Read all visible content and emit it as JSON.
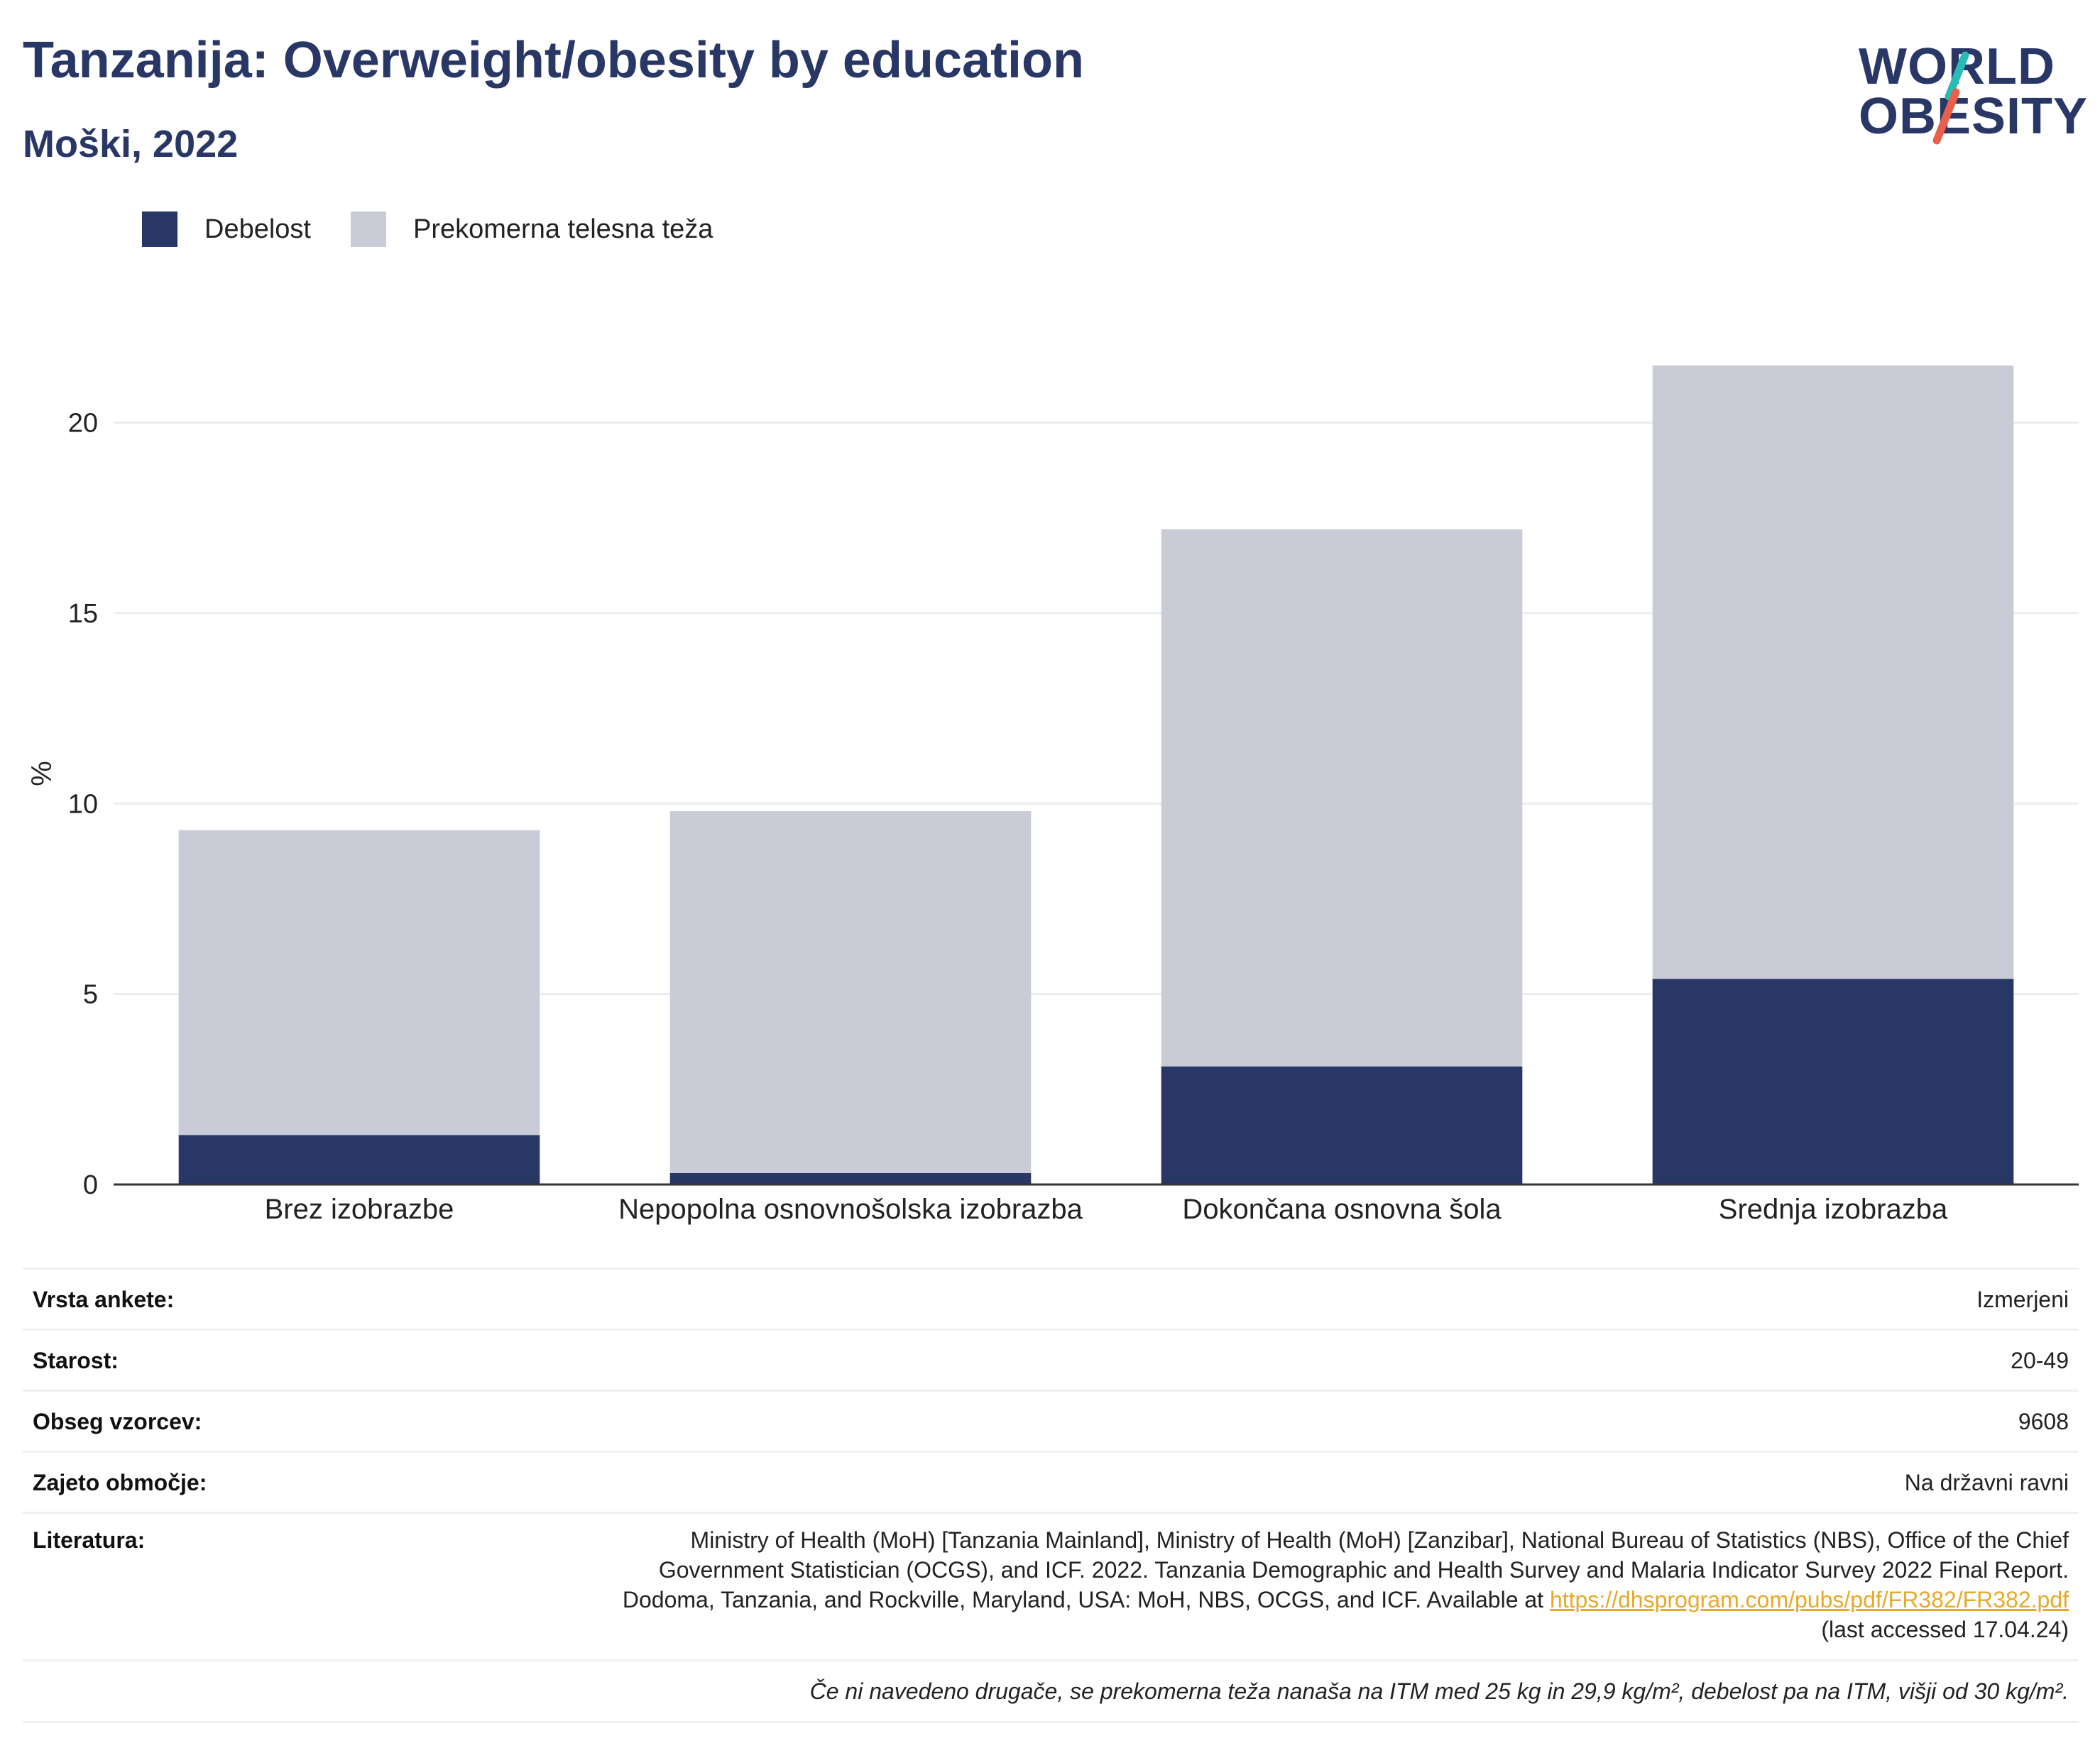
{
  "title": "Tanzanija: Overweight/obesity by education",
  "subtitle": "Moški, 2022",
  "logo": {
    "line1": "WORLD",
    "line2": "OBESITY",
    "accent_top": "#2bbbb7",
    "accent_bottom": "#e8604c"
  },
  "colors": {
    "obesity": "#283765",
    "overweight": "#c9ccd7",
    "title": "#283765",
    "link": "#e7a92a"
  },
  "legend": [
    {
      "label": "Debelost",
      "color": "#283765"
    },
    {
      "label": "Prekomerna telesna teža",
      "color": "#c9ccd7"
    }
  ],
  "chart_data": {
    "type": "bar",
    "stacked": true,
    "categories": [
      "Brez izobrazbe",
      "Nepopolna osnovnošolska izobrazba",
      "Dokončana osnovna šola",
      "Srednja izobrazba"
    ],
    "series": [
      {
        "name": "Debelost",
        "values": [
          1.3,
          0.3,
          3.1,
          5.4
        ]
      },
      {
        "name": "Prekomerna telesna teža",
        "values": [
          8.0,
          9.5,
          14.1,
          16.1
        ]
      }
    ],
    "ylabel": "%",
    "yticks": [
      0,
      5,
      10,
      15,
      20
    ],
    "ylim": [
      0,
      23
    ],
    "grid": true,
    "legend_position": "top-left"
  },
  "info": {
    "survey_type": {
      "label": "Vrsta ankete:",
      "value": "Izmerjeni"
    },
    "age": {
      "label": "Starost:",
      "value": "20-49"
    },
    "sample": {
      "label": "Obseg vzorcev:",
      "value": "9608"
    },
    "coverage": {
      "label": "Zajeto območje:",
      "value": "Na državni ravni"
    },
    "reference": {
      "label": "Literatura:",
      "text": "Ministry of Health (MoH) [Tanzania Mainland], Ministry of Health (MoH) [Zanzibar], National Bureau of Statistics (NBS), Office of the Chief Government Statistician (OCGS), and ICF. 2022. Tanzania Demographic and Health Survey and Malaria Indicator Survey 2022 Final Report. Dodoma, Tanzania, and Rockville, Maryland, USA: MoH, NBS, OCGS, and ICF. Available at",
      "link": "https://dhsprogram.com/pubs/pdf/FR382/FR382.pdf",
      "accessed": "(last accessed 17.04.24)"
    },
    "note": "Če ni navedeno drugače, se prekomerna teža nanaša na ITM med 25 kg in 29,9 kg/m², debelost pa na ITM, višji od 30 kg/m²."
  }
}
